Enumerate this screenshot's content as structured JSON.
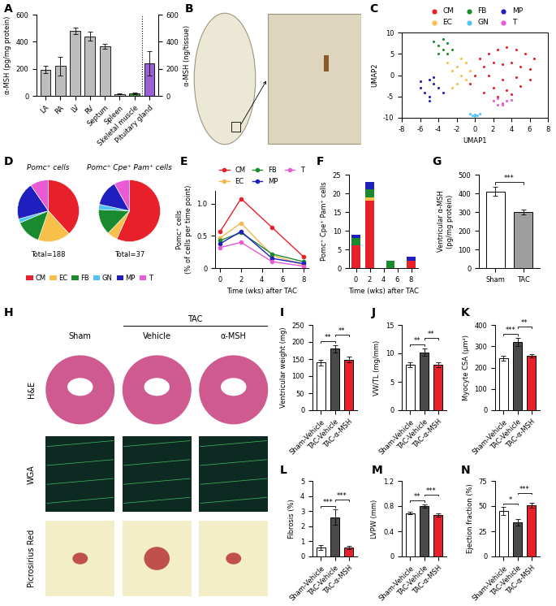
{
  "chart_data": [
    {
      "panel": "A",
      "type": "bar",
      "categories": [
        "LA",
        "RA",
        "LV",
        "RV",
        "Septum",
        "Spleen",
        "Skeletal muscle",
        "Pituitary gland"
      ],
      "colors": [
        "#bdbdbd",
        "#bdbdbd",
        "#bdbdbd",
        "#bdbdbd",
        "#bdbdbd",
        "#bdbdbd",
        "#3f9f3f",
        "#9b5fd6"
      ],
      "series": [
        {
          "values": [
            195,
            220,
            480,
            440,
            365,
            15,
            20,
            null
          ],
          "errors": [
            25,
            70,
            25,
            35,
            20,
            5,
            5,
            null
          ]
        },
        {
          "axis": "y2",
          "values": [
            null,
            null,
            null,
            null,
            null,
            null,
            null,
            240
          ],
          "errors": [
            null,
            null,
            null,
            null,
            null,
            null,
            null,
            90
          ]
        }
      ],
      "ylabel": "α-MSH (pg/mg protein)",
      "y2label": "α-MSH (ng/tissue)",
      "ylim": [
        0,
        600
      ],
      "yticks": [
        0,
        200,
        400,
        600
      ],
      "y2lim": [
        0,
        600
      ],
      "y2ticks": [
        0,
        200,
        400,
        600
      ]
    },
    {
      "panel": "B",
      "type": "image"
    },
    {
      "panel": "C",
      "type": "scatter",
      "xlabel": "UMAP1",
      "ylabel": "UMAP2",
      "xlim": [
        -8,
        8
      ],
      "ylim": [
        -10,
        10
      ],
      "xticks": [
        -8,
        -6,
        -4,
        -2,
        0,
        2,
        4,
        6,
        8
      ],
      "yticks": [
        -10,
        -5,
        0,
        5,
        10
      ],
      "legend": "above",
      "series": [
        {
          "name": "CM",
          "color": "#e8202a",
          "x": [
            0.5,
            1.5,
            2.5,
            3.5,
            4.5,
            5.5,
            6.5,
            1,
            2,
            3,
            4,
            5,
            6,
            0,
            1.5,
            3,
            4.5,
            2,
            3.5,
            5,
            -0.5,
            1,
            2.5,
            4,
            6
          ],
          "y": [
            4,
            5,
            6,
            6.5,
            6,
            5,
            4,
            2,
            3,
            2.5,
            3,
            2,
            1.5,
            0,
            0,
            -1,
            -0.5,
            -3,
            -3.5,
            -2.5,
            -2,
            -4,
            -5,
            -4.5,
            -1
          ]
        },
        {
          "name": "EC",
          "color": "#f7c04a",
          "x": [
            -3,
            -2.5,
            -2,
            -1.5,
            -1,
            -2,
            -1,
            -0.5,
            -2.5,
            -1.5
          ],
          "y": [
            3,
            1,
            2,
            0,
            -1,
            -2,
            3,
            1,
            -3,
            4
          ]
        },
        {
          "name": "FB",
          "color": "#1a8a2e",
          "x": [
            -4.5,
            -4,
            -3.5,
            -3,
            -4,
            -3,
            -3.5,
            -2.5
          ],
          "y": [
            8,
            7,
            6,
            7.5,
            5,
            5,
            8.5,
            6
          ]
        },
        {
          "name": "GN",
          "color": "#4fc3f7",
          "x": [
            -0.5,
            0,
            0.5,
            0,
            -0.3,
            0.3
          ],
          "y": [
            -9,
            -9.3,
            -9,
            -9.6,
            -9.5,
            -9.4
          ]
        },
        {
          "name": "MP",
          "color": "#1f1fbf",
          "x": [
            -6,
            -5.5,
            -5,
            -4.5,
            -4,
            -5,
            -4.5,
            -3.5,
            -6,
            -5
          ],
          "y": [
            -3,
            -4,
            -5,
            -2,
            -3,
            -1,
            -0.5,
            -4,
            -1.5,
            -6
          ]
        },
        {
          "name": "T",
          "color": "#e85ad6",
          "x": [
            2,
            2.5,
            3,
            3.5,
            3,
            2.5,
            4
          ],
          "y": [
            -6,
            -5.5,
            -6.5,
            -6,
            -7,
            -7,
            -5.8
          ]
        }
      ]
    },
    {
      "panel": "D",
      "type": "pie",
      "legend": "below",
      "categories": [
        "CM",
        "EC",
        "FB",
        "GN",
        "MP",
        "T"
      ],
      "colors": [
        "#e8202a",
        "#f7c04a",
        "#1a8a2e",
        "#4fc3f7",
        "#1f1fbf",
        "#e85ad6"
      ],
      "pies": [
        {
          "title": "Pomc⁺ cells",
          "total": "Total=188",
          "values": [
            72,
            32,
            25,
            4,
            37,
            18
          ]
        },
        {
          "title": "Pomc⁺ Cpe⁺ Pam⁺ cells",
          "total": "Total=37",
          "values": [
            21,
            2,
            5,
            1,
            5,
            3
          ]
        }
      ]
    },
    {
      "panel": "E",
      "type": "line",
      "legend": "above",
      "xlabel": "Time (wks) after TAC",
      "ylabel": "Pomc⁺ cells\n(% of cells per time point)",
      "x": [
        0,
        2,
        5,
        8
      ],
      "xlim": [
        -0.5,
        8.5
      ],
      "xticks": [
        0,
        2,
        4,
        6,
        8
      ],
      "ylim": [
        0,
        1.2
      ],
      "yticks": [
        0,
        0.5,
        1.0
      ],
      "marker": "o",
      "series": [
        {
          "name": "CM",
          "color": "#e8202a",
          "values": [
            0.57,
            1.08,
            0.63,
            0.18
          ]
        },
        {
          "name": "EC",
          "color": "#f2b84b",
          "values": [
            0.47,
            0.7,
            0.2,
            0.05
          ]
        },
        {
          "name": "FB",
          "color": "#1a8a2e",
          "values": [
            0.43,
            0.55,
            0.22,
            0.1
          ]
        },
        {
          "name": "MP",
          "color": "#1f1fbf",
          "values": [
            0.38,
            0.57,
            0.15,
            0.07
          ]
        },
        {
          "name": "T",
          "color": "#e85ad6",
          "values": [
            0.32,
            0.4,
            0.1,
            0.03
          ]
        }
      ]
    },
    {
      "panel": "F",
      "type": "bar",
      "stacked": true,
      "xlabel": "Time (wks) after TAC",
      "ylabel": "Pomc⁺ Cpe⁺ Pam⁺ cells",
      "x": [
        0,
        2,
        5,
        8
      ],
      "xlim": [
        -1,
        9
      ],
      "xticks": [
        0,
        2,
        4,
        6,
        8
      ],
      "ylim": [
        0,
        25
      ],
      "yticks": [
        0,
        5,
        10,
        15,
        20,
        25
      ],
      "series": [
        {
          "color": "#e8202a",
          "values": [
            6,
            18,
            0,
            2
          ]
        },
        {
          "color": "#f7c04a",
          "values": [
            0,
            1,
            0,
            0
          ]
        },
        {
          "color": "#1a8a2e",
          "values": [
            2,
            2,
            2,
            0
          ]
        },
        {
          "color": "#1f1fbf",
          "values": [
            1,
            2,
            0,
            1
          ]
        }
      ]
    },
    {
      "panel": "G",
      "type": "bar",
      "categories": [
        "Sham",
        "TAC"
      ],
      "values": [
        410,
        300
      ],
      "errors": [
        25,
        12
      ],
      "colors": [
        "#ffffff",
        "#9e9e9e"
      ],
      "ylabel": "Ventricular α-MSH\n(pg/mg protein)",
      "ylim": [
        0,
        500
      ],
      "yticks": [
        0,
        100,
        200,
        300,
        400,
        500
      ],
      "significance": [
        {
          "pair": [
            0,
            1
          ],
          "label": "***"
        }
      ]
    },
    {
      "panel": "H",
      "type": "image",
      "headers": [
        {
          "label": "Sham"
        },
        {
          "label": "TAC",
          "sub": [
            "Vehicle",
            "α-MSH"
          ]
        }
      ],
      "rows": [
        "H&E",
        "WGA",
        "Picrosirius Red"
      ]
    },
    {
      "panel": "I",
      "type": "bar",
      "categories": [
        "Sham-Vehicle",
        "TAC-Vehicle",
        "TAC-α-MSH"
      ],
      "values": [
        140,
        180,
        148
      ],
      "errors": [
        8,
        10,
        8
      ],
      "colors": [
        "#ffffff",
        "#4a4a4a",
        "#e8202a"
      ],
      "ylabel": "Ventricular weight (mg)",
      "ylim": [
        0,
        250
      ],
      "yticks": [
        0,
        50,
        100,
        150,
        200,
        250
      ],
      "significance": [
        {
          "pair": [
            0,
            1
          ],
          "label": "**"
        },
        {
          "pair": [
            1,
            2
          ],
          "label": "**"
        }
      ]
    },
    {
      "panel": "J",
      "type": "bar",
      "categories": [
        "Sham-Vehicle",
        "TAC-Vehicle",
        "TAC-α-MSH"
      ],
      "values": [
        8.0,
        10.2,
        8.0
      ],
      "errors": [
        0.4,
        0.6,
        0.4
      ],
      "colors": [
        "#ffffff",
        "#4a4a4a",
        "#e8202a"
      ],
      "ylabel": "VW/TL (mg/mm)",
      "ylim": [
        0,
        15
      ],
      "yticks": [
        0,
        5,
        10,
        15
      ],
      "significance": [
        {
          "pair": [
            0,
            1
          ],
          "label": "**"
        },
        {
          "pair": [
            1,
            2
          ],
          "label": "**"
        }
      ]
    },
    {
      "panel": "K",
      "type": "bar",
      "categories": [
        "Sham-Vehicle",
        "TAC-Vehicle",
        "TAC-α-MSH"
      ],
      "values": [
        245,
        320,
        255
      ],
      "errors": [
        12,
        20,
        6
      ],
      "colors": [
        "#ffffff",
        "#4a4a4a",
        "#e8202a"
      ],
      "ylabel": "Myocyte CSA (µm²)",
      "ylim": [
        0,
        400
      ],
      "yticks": [
        0,
        100,
        200,
        300,
        400
      ],
      "significance": [
        {
          "pair": [
            0,
            1
          ],
          "label": "***"
        },
        {
          "pair": [
            1,
            2
          ],
          "label": "**"
        }
      ]
    },
    {
      "panel": "L",
      "type": "bar",
      "categories": [
        "Sham-Vehicle",
        "TAC-Vehicle",
        "TAC-α-MSH"
      ],
      "values": [
        0.6,
        2.6,
        0.6
      ],
      "errors": [
        0.15,
        0.5,
        0.1
      ],
      "colors": [
        "#ffffff",
        "#4a4a4a",
        "#e8202a"
      ],
      "ylabel": "Fibrosis (%)",
      "ylim": [
        0,
        5
      ],
      "yticks": [
        0,
        1,
        2,
        3,
        4,
        5
      ],
      "significance": [
        {
          "pair": [
            0,
            1
          ],
          "label": "***"
        },
        {
          "pair": [
            1,
            2
          ],
          "label": "***"
        }
      ]
    },
    {
      "panel": "M",
      "type": "bar",
      "categories": [
        "Sham-Vehicle",
        "TAC-Vehicle",
        "TAC-α-MSH"
      ],
      "values": [
        0.69,
        0.8,
        0.66
      ],
      "errors": [
        0.02,
        0.03,
        0.03
      ],
      "colors": [
        "#ffffff",
        "#4a4a4a",
        "#e8202a"
      ],
      "ylabel": "LVPW (mm)",
      "ylim": [
        0,
        1.2
      ],
      "yticks": [
        0,
        0.4,
        0.8,
        1.2
      ],
      "significance": [
        {
          "pair": [
            0,
            1
          ],
          "label": "**"
        },
        {
          "pair": [
            1,
            2
          ],
          "label": "***"
        }
      ]
    },
    {
      "panel": "N",
      "type": "bar",
      "categories": [
        "Sham-Vehicle",
        "TAC-Vehicle",
        "TAC-α-MSH"
      ],
      "values": [
        45,
        34,
        51
      ],
      "errors": [
        4,
        3,
        2.5
      ],
      "colors": [
        "#ffffff",
        "#4a4a4a",
        "#e8202a"
      ],
      "ylabel": "Ejection fraction (%)",
      "ylim": [
        0,
        75
      ],
      "yticks": [
        0,
        25,
        50,
        75
      ],
      "significance": [
        {
          "pair": [
            0,
            1
          ],
          "label": "*"
        },
        {
          "pair": [
            1,
            2
          ],
          "label": "***"
        }
      ]
    }
  ]
}
